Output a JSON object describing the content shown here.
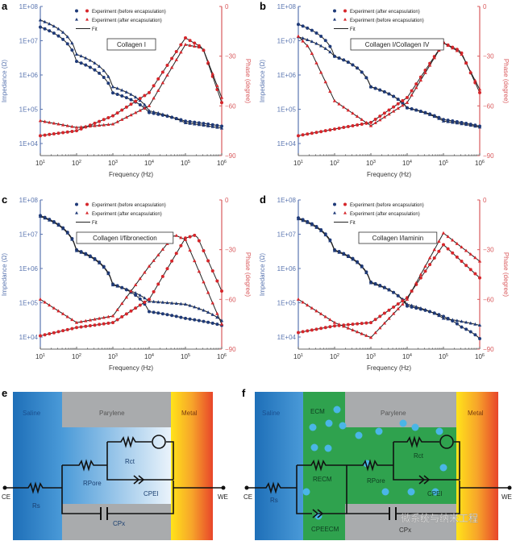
{
  "colors": {
    "impedance": "#1f3a78",
    "phase": "#d6262b",
    "fit": "#222222",
    "impedance_axis": "#5b76b0",
    "phase_axis": "#d9595c"
  },
  "chart_data": [
    {
      "panel": "a",
      "type": "line",
      "title": "Collagen I",
      "xlabel": "Frequency (Hz)",
      "ylabel": "Impedance (Ω)",
      "y2label": "Phase (degree)",
      "xscale": "log",
      "xlim": [
        10,
        1000000
      ],
      "yscale": "log",
      "ylim": [
        10000,
        100000000
      ],
      "y2lim": [
        -90,
        0
      ],
      "xticks": [
        "10^1",
        "10^2",
        "10^3",
        "10^4",
        "10^5",
        "10^6"
      ],
      "yticks": [
        "1E+04",
        "1E+05",
        "1E+06",
        "1E+07",
        "1E+08"
      ],
      "y2ticks": [
        "0",
        "-30",
        "-60",
        "-90"
      ],
      "legend": [
        "Experiment (before encapsulation)",
        "Experiment (after encapsulation)",
        "Fit"
      ],
      "legend_position": "top",
      "series": [
        {
          "name": "Impedance before",
          "marker": "circle",
          "axis": "y",
          "x": [
            10,
            100,
            1000,
            10000,
            100000,
            1000000
          ],
          "values": [
            25000000,
            2500000,
            300000,
            80000,
            45000,
            32000
          ]
        },
        {
          "name": "Impedance after",
          "marker": "triangle",
          "axis": "y",
          "x": [
            10,
            100,
            1000,
            10000,
            100000,
            1000000
          ],
          "values": [
            40000000,
            4000000,
            450000,
            90000,
            40000,
            28000
          ]
        },
        {
          "name": "Phase before",
          "marker": "circle",
          "axis": "y2",
          "x": [
            10,
            100,
            1000,
            10000,
            100000,
            300000,
            1000000
          ],
          "values": [
            -78,
            -75,
            -66,
            -52,
            -19,
            -25,
            -58
          ]
        },
        {
          "name": "Phase after",
          "marker": "triangle",
          "axis": "y2",
          "x": [
            10,
            100,
            1000,
            10000,
            100000,
            300000,
            1000000
          ],
          "values": [
            -69,
            -73,
            -71,
            -60,
            -23,
            -25,
            -55
          ]
        }
      ]
    },
    {
      "panel": "b",
      "type": "line",
      "title": "Collagen I/Collagen IV",
      "xlabel": "Frequency (Hz)",
      "ylabel": "Impedance (Ω)",
      "y2label": "Phase (degree)",
      "xscale": "log",
      "xlim": [
        10,
        1000000
      ],
      "yscale": "log",
      "ylim": [
        10000,
        100000000
      ],
      "y2lim": [
        -90,
        0
      ],
      "xticks": [
        "10^1",
        "10^2",
        "10^3",
        "10^4",
        "10^5",
        "10^6"
      ],
      "yticks": [
        "1E+04",
        "1E+05",
        "1E+06",
        "1E+07",
        "1E+08"
      ],
      "y2ticks": [
        "0",
        "-30",
        "-60",
        "-90"
      ],
      "legend": [
        "Experiment (after encapsulation)",
        "Experiment (before encapsulation)",
        "Fit"
      ],
      "legend_position": "top",
      "series": [
        {
          "name": "Impedance after",
          "marker": "circle",
          "axis": "y",
          "x": [
            10,
            100,
            1000,
            10000,
            100000,
            1000000
          ],
          "values": [
            30000000,
            3500000,
            450000,
            110000,
            50000,
            32000
          ]
        },
        {
          "name": "Impedance before",
          "marker": "triangle",
          "axis": "y",
          "x": [
            10,
            100,
            1000,
            10000,
            100000,
            1000000
          ],
          "values": [
            13000000,
            3500000,
            450000,
            110000,
            45000,
            30000
          ]
        },
        {
          "name": "Phase after",
          "marker": "circle",
          "axis": "y2",
          "x": [
            10,
            100,
            1000,
            10000,
            100000,
            300000,
            1000000
          ],
          "values": [
            -78,
            -74,
            -70,
            -55,
            -22,
            -27,
            -52
          ]
        },
        {
          "name": "Phase before",
          "marker": "triangle",
          "axis": "y2",
          "x": [
            10,
            20,
            100,
            1000,
            10000,
            100000,
            300000,
            1000000
          ],
          "values": [
            -18,
            -25,
            -57,
            -72,
            -58,
            -22,
            -28,
            -50
          ]
        }
      ]
    },
    {
      "panel": "c",
      "type": "line",
      "title": "Collagen I/fibronection",
      "xlabel": "Frequency (Hz)",
      "ylabel": "Impedance (Ω)",
      "y2label": "Phase (degree)",
      "xscale": "log",
      "xlim": [
        10,
        1000000
      ],
      "yscale": "log",
      "ylim": [
        10000,
        100000000
      ],
      "y2lim": [
        -90,
        0
      ],
      "xticks": [
        "10^1",
        "10^2",
        "10^3",
        "10^4",
        "10^5",
        "10^6"
      ],
      "yticks": [
        "1E+04",
        "1E+05",
        "1E+06",
        "1E+07",
        "1E+08"
      ],
      "y2ticks": [
        "0",
        "-30",
        "-60",
        "-90"
      ],
      "legend": [
        "Experiment (before encapsulation)",
        "Experiment (after encapsulation)",
        "Fit"
      ],
      "legend_position": "top",
      "series": [
        {
          "name": "Impedance before",
          "marker": "circle",
          "axis": "y",
          "x": [
            10,
            100,
            1000,
            10000,
            100000,
            1000000
          ],
          "values": [
            35000000,
            3500000,
            350000,
            55000,
            35000,
            22000
          ]
        },
        {
          "name": "Impedance after",
          "marker": "triangle",
          "axis": "y",
          "x": [
            10,
            100,
            1000,
            10000,
            100000,
            1000000
          ],
          "values": [
            33000000,
            3300000,
            330000,
            110000,
            90000,
            30000
          ]
        },
        {
          "name": "Phase before",
          "marker": "circle",
          "axis": "y2",
          "x": [
            10,
            100,
            1000,
            10000,
            100000,
            200000,
            1000000
          ],
          "values": [
            -82,
            -77,
            -74,
            -60,
            -23,
            -21,
            -55
          ]
        },
        {
          "name": "Phase after",
          "marker": "triangle",
          "axis": "y2",
          "x": [
            10,
            100,
            1000,
            10000,
            50000,
            100000,
            1000000
          ],
          "values": [
            -60,
            -74,
            -70,
            -40,
            -21,
            -24,
            -75
          ]
        }
      ]
    },
    {
      "panel": "d",
      "type": "line",
      "title": "Collagen I/laminin",
      "xlabel": "Frequency (Hz)",
      "ylabel": "Impedance (Ω)",
      "y2label": "Phase (degree)",
      "xscale": "log",
      "xlim": [
        10,
        1000000
      ],
      "yscale": "log",
      "ylim": [
        10000,
        100000000
      ],
      "y2lim": [
        -90,
        0
      ],
      "xticks": [
        "10^1",
        "10^2",
        "10^3",
        "10^4",
        "10^5",
        "10^6"
      ],
      "yticks": [
        "1E+04",
        "1E+05",
        "1E+06",
        "1E+07",
        "1E+08"
      ],
      "y2ticks": [
        "0",
        "-30",
        "-60",
        "-90"
      ],
      "legend": [
        "Experiment (before encapsulation)",
        "Experiment (after encapsulation)",
        "Fit"
      ],
      "legend_position": "top",
      "series": [
        {
          "name": "Impedance before",
          "marker": "circle",
          "axis": "y",
          "x": [
            10,
            100,
            1000,
            10000,
            100000,
            300000,
            1000000
          ],
          "values": [
            30000000,
            3500000,
            400000,
            80000,
            40000,
            20000,
            9000
          ]
        },
        {
          "name": "Impedance after",
          "marker": "triangle",
          "axis": "y",
          "x": [
            10,
            100,
            1000,
            10000,
            100000,
            1000000
          ],
          "values": [
            28000000,
            3300000,
            380000,
            90000,
            35000,
            22000
          ]
        },
        {
          "name": "Phase before",
          "marker": "circle",
          "axis": "y2",
          "x": [
            10,
            100,
            1000,
            10000,
            100000,
            1000000
          ],
          "values": [
            -80,
            -76,
            -74,
            -59,
            -27,
            -47
          ]
        },
        {
          "name": "Phase after",
          "marker": "triangle",
          "axis": "y2",
          "x": [
            10,
            100,
            1000,
            10000,
            100000,
            1000000
          ],
          "values": [
            -60,
            -74,
            -83,
            -60,
            -20,
            -37
          ]
        }
      ]
    }
  ],
  "panels": {
    "a": "a",
    "b": "b",
    "c": "c",
    "d": "d",
    "e": "e",
    "f": "f"
  },
  "circuit_e": {
    "regions": [
      "Saline",
      "Parylene",
      "Metal"
    ],
    "terminals": [
      "CE",
      "WE"
    ],
    "components": [
      "Rs",
      "RPore",
      "Rct",
      "CPEI",
      "CPx"
    ]
  },
  "circuit_f": {
    "regions": [
      "Saline",
      "ECM",
      "Parylene",
      "Metal"
    ],
    "terminals": [
      "CE",
      "WE"
    ],
    "components": [
      "Rs",
      "RECM",
      "CPEECM",
      "RPore",
      "Rct",
      "CPEI",
      "CPx"
    ]
  },
  "watermark": "微系统与纳米工程"
}
